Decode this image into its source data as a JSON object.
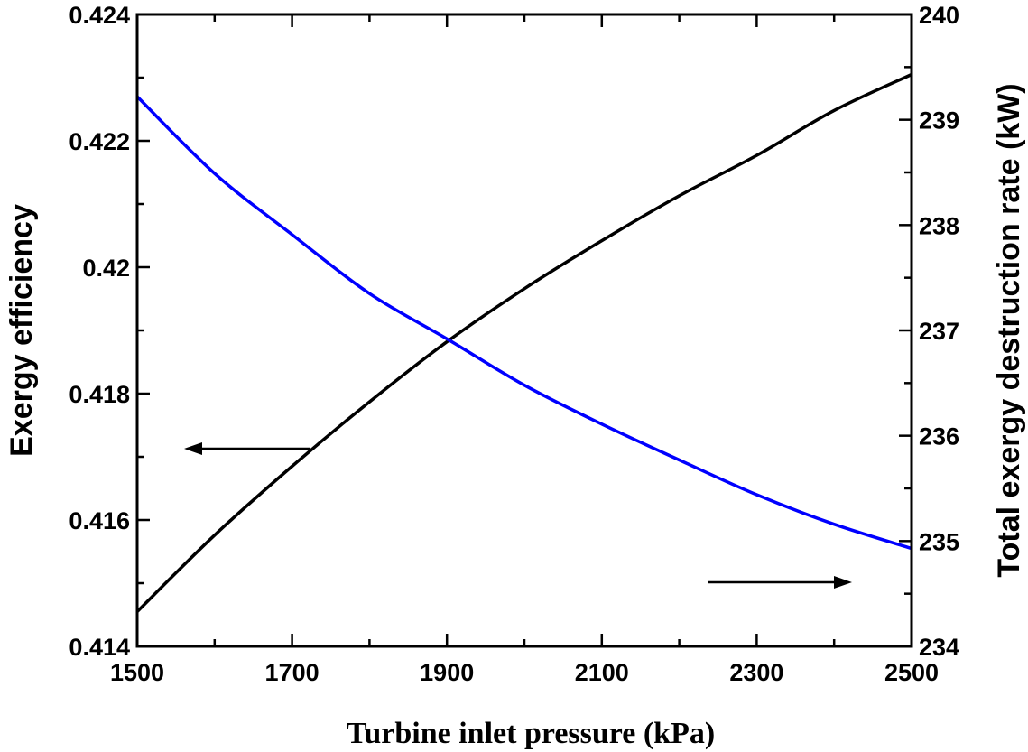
{
  "chart_data": {
    "type": "line",
    "title": "",
    "xlabel": "Turbine inlet pressure (kPa)",
    "ylabel_left": "Exergy efficiency",
    "ylabel_right": "Total exergy destruction rate (kW)",
    "xlim": [
      1500,
      2500
    ],
    "ylim_left": [
      0.414,
      0.424
    ],
    "ylim_right": [
      234,
      240
    ],
    "x_ticks": [
      1500,
      1700,
      1900,
      2100,
      2300,
      2500
    ],
    "y_left_ticks": [
      "0.414",
      "0.416",
      "0.418",
      "0.42",
      "0.422",
      "0.424"
    ],
    "y_right_ticks": [
      "234",
      "235",
      "236",
      "237",
      "238",
      "239",
      "240"
    ],
    "grid": false,
    "legend": "none",
    "series": [
      {
        "axis": "left",
        "color": "#000000",
        "x": [
          1500,
          1600,
          1700,
          1800,
          1900,
          2000,
          2100,
          2200,
          2300,
          2400,
          2500
        ],
        "values": [
          0.41455,
          0.41576,
          0.41685,
          0.41787,
          0.41882,
          0.41966,
          0.42042,
          0.42113,
          0.42177,
          0.42248,
          0.42305
        ]
      },
      {
        "axis": "right",
        "color": "#0000ff",
        "x": [
          1500,
          1600,
          1700,
          1800,
          1900,
          2000,
          2100,
          2200,
          2300,
          2400,
          2500
        ],
        "values": [
          239.22,
          238.49,
          237.91,
          237.35,
          236.92,
          236.48,
          236.11,
          235.77,
          235.44,
          235.16,
          234.93
        ]
      }
    ],
    "annotations": [
      {
        "type": "arrow",
        "direction": "left",
        "target_axis": "left"
      },
      {
        "type": "arrow",
        "direction": "right",
        "target_axis": "right"
      }
    ]
  }
}
